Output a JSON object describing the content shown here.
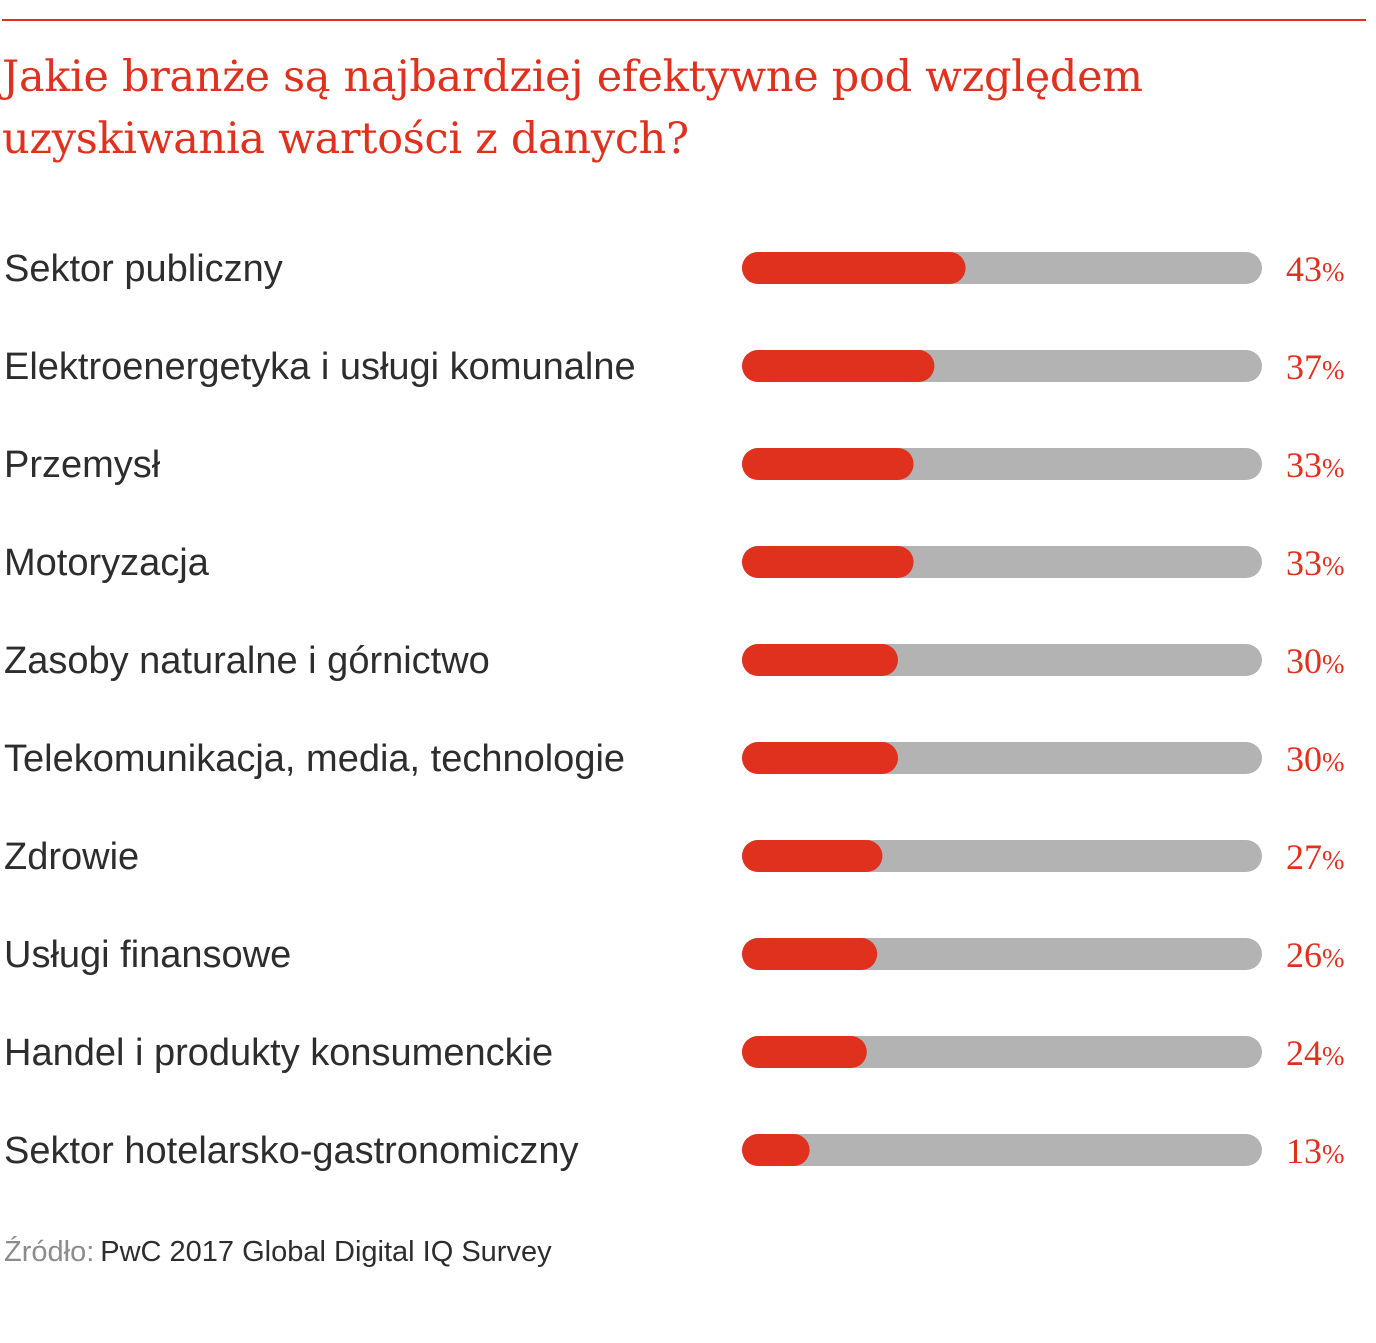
{
  "title": {
    "line1": "Jakie branże są najbardziej efektywne pod względem",
    "line2": "uzyskiwania wartości z danych?"
  },
  "chart_data": {
    "type": "bar",
    "orientation": "horizontal",
    "title": "Jakie branże są najbardziej efektywne pod względem uzyskiwania wartości z danych?",
    "categories": [
      "Sektor publiczny",
      "Elektroenergetyka i usługi komunalne",
      "Przemysł",
      "Motoryzacja",
      "Zasoby naturalne i górnictwo",
      "Telekomunikacja, media, technologie",
      "Zdrowie",
      "Usługi finansowe",
      "Handel i produkty konsumenckie",
      "Sektor hotelarsko-gastronomiczny"
    ],
    "values": [
      43,
      37,
      33,
      33,
      30,
      30,
      27,
      26,
      24,
      13
    ],
    "value_labels": [
      "43",
      "37",
      "33",
      "33",
      "30",
      "30",
      "27",
      "26",
      "24",
      "13"
    ],
    "unit": "%",
    "xlim": [
      0,
      100
    ],
    "grid": false,
    "legend": "none",
    "colors": {
      "bar": "#e0301e",
      "track": "#b3b3b3",
      "value": "#e0301e",
      "label": "#2d2d2d"
    }
  },
  "source": {
    "prefix": "Źródło:",
    "text": "PwC 2017 Global Digital IQ Survey"
  }
}
